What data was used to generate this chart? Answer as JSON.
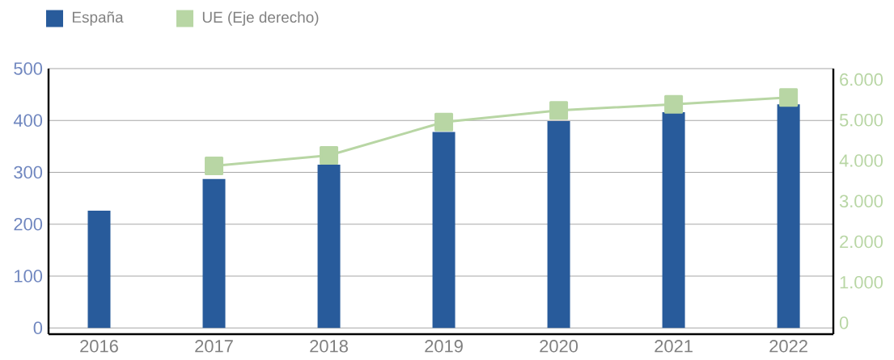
{
  "chart_data": {
    "type": "bar",
    "categories": [
      "2016",
      "2017",
      "2018",
      "2019",
      "2020",
      "2021",
      "2022"
    ],
    "series": [
      {
        "name": "España",
        "color": "#285b9b",
        "values": [
          226,
          287,
          315,
          378,
          399,
          416,
          431
        ]
      },
      {
        "name": "UE (Eje derecho)",
        "type": "line",
        "axis": "y2",
        "color": "#b8d6a4",
        "marker": "square",
        "values": [
          null,
          3870,
          4130,
          4950,
          5240,
          5390,
          5560
        ]
      }
    ],
    "ylim": [
      -12,
      500
    ],
    "yticks": [
      0,
      100,
      200,
      300,
      400,
      500
    ],
    "y2lim": [
      -280,
      6270
    ],
    "y2ticks": [
      {
        "value": 0,
        "label": "0"
      },
      {
        "value": 1000,
        "label": "1.000"
      },
      {
        "value": 2000,
        "label": "2.000"
      },
      {
        "value": 3000,
        "label": "3.000"
      },
      {
        "value": 4000,
        "label": "4.000"
      },
      {
        "value": 5000,
        "label": "5.000"
      },
      {
        "value": 6000,
        "label": "6.000"
      }
    ],
    "grid": "y",
    "legend": "top left"
  }
}
